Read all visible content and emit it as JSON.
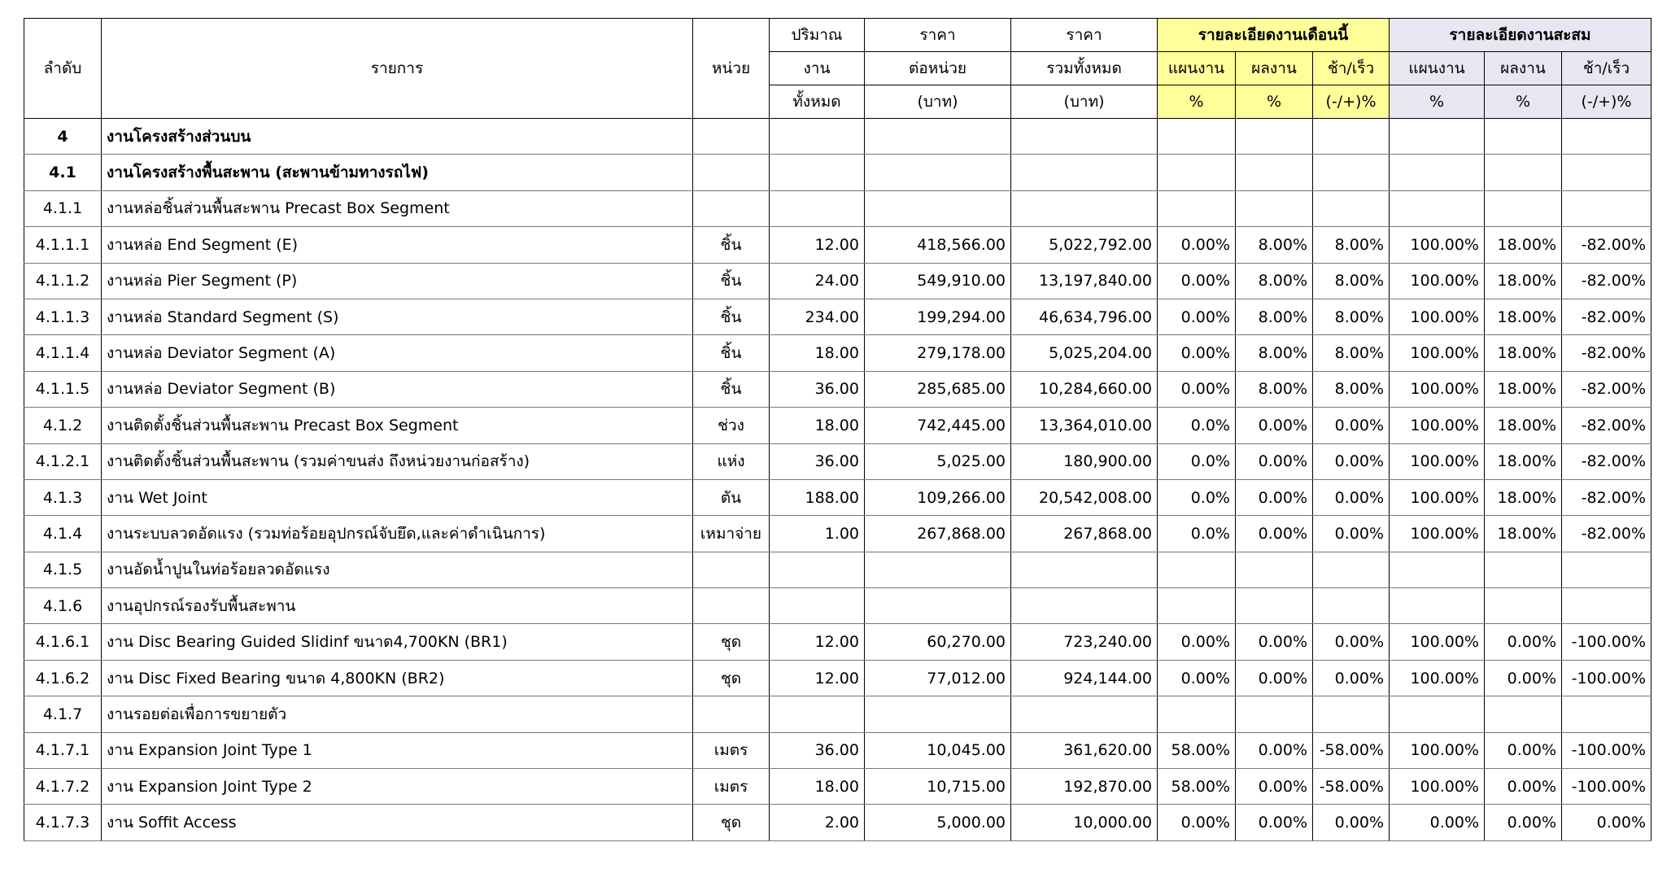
{
  "header": {
    "no": "ลำดับ",
    "item": "รายการ",
    "unit": "หน่วย",
    "qty": [
      "ปริมาณ",
      "งาน",
      "ทั้งหมด"
    ],
    "price": [
      "ราคา",
      "ต่อหน่วย",
      "(บาท)"
    ],
    "total": [
      "ราคา",
      "รวมทั้งหมด",
      "(บาท)"
    ],
    "month": {
      "title": "รายละเอียดงานเดือนนี้",
      "sub": [
        [
          "แผนงาน",
          "%"
        ],
        [
          "ผลงาน",
          "%"
        ],
        [
          "ช้า/เร็ว",
          "(-/+)%"
        ]
      ]
    },
    "cum": {
      "title": "รายละเอียดงานสะสม",
      "sub": [
        [
          "แผนงาน",
          "%"
        ],
        [
          "ผลงาน",
          "%"
        ],
        [
          "ช้า/เร็ว",
          "(-/+)%"
        ]
      ]
    }
  },
  "rows": [
    [
      "4",
      "งานโครงสร้างส่วนบน"
    ],
    [
      "4.1",
      "งานโครงสร้างพื้นสะพาน (สะพานข้ามทางรถไฟ)"
    ],
    [
      "4.1.1",
      "งานหล่อชิ้นส่วนพื้นสะพาน Precast Box Segment"
    ],
    [
      "4.1.1.1",
      "งานหล่อ End Segment (E)",
      "ชิ้น",
      "12.00",
      "418,566.00",
      "5,022,792.00",
      "0.00%",
      "8.00%",
      "8.00%",
      "100.00%",
      "18.00%",
      "-82.00%"
    ],
    [
      "4.1.1.2",
      "งานหล่อ Pier Segment (P)",
      "ชิ้น",
      "24.00",
      "549,910.00",
      "13,197,840.00",
      "0.00%",
      "8.00%",
      "8.00%",
      "100.00%",
      "18.00%",
      "-82.00%"
    ],
    [
      "4.1.1.3",
      "งานหล่อ Standard Segment (S)",
      "ชิ้น",
      "234.00",
      "199,294.00",
      "46,634,796.00",
      "0.00%",
      "8.00%",
      "8.00%",
      "100.00%",
      "18.00%",
      "-82.00%"
    ],
    [
      "4.1.1.4",
      "งานหล่อ Deviator Segment (A)",
      "ชิ้น",
      "18.00",
      "279,178.00",
      "5,025,204.00",
      "0.00%",
      "8.00%",
      "8.00%",
      "100.00%",
      "18.00%",
      "-82.00%"
    ],
    [
      "4.1.1.5",
      "งานหล่อ Deviator Segment (B)",
      "ชิ้น",
      "36.00",
      "285,685.00",
      "10,284,660.00",
      "0.00%",
      "8.00%",
      "8.00%",
      "100.00%",
      "18.00%",
      "-82.00%"
    ],
    [
      "4.1.2",
      "งานติดตั้งชิ้นส่วนพื้นสะพาน Precast Box Segment",
      "ช่วง",
      "18.00",
      "742,445.00",
      "13,364,010.00",
      "0.0%",
      "0.00%",
      "0.00%",
      "100.00%",
      "18.00%",
      "-82.00%"
    ],
    [
      "4.1.2.1",
      "งานติดตั้งชิ้นส่วนพื้นสะพาน (รวมค่าขนส่ง ถึงหน่วยงานก่อสร้าง)",
      "แห่ง",
      "36.00",
      "5,025.00",
      "180,900.00",
      "0.0%",
      "0.00%",
      "0.00%",
      "100.00%",
      "18.00%",
      "-82.00%"
    ],
    [
      "4.1.3",
      "งาน Wet Joint",
      "ตัน",
      "188.00",
      "109,266.00",
      "20,542,008.00",
      "0.0%",
      "0.00%",
      "0.00%",
      "100.00%",
      "18.00%",
      "-82.00%"
    ],
    [
      "4.1.4",
      "งานระบบลวดอัดแรง (รวมท่อร้อยอุปกรณ์จับยึด,และค่าดำเนินการ)",
      "เหมาจ่าย",
      "1.00",
      "267,868.00",
      "267,868.00",
      "0.0%",
      "0.00%",
      "0.00%",
      "100.00%",
      "18.00%",
      "-82.00%"
    ],
    [
      "4.1.5",
      "งานอัดน้ำปูนในท่อร้อยลวดอัดแรง"
    ],
    [
      "4.1.6",
      "งานอุปกรณ์รองรับพื้นสะพาน"
    ],
    [
      "4.1.6.1",
      "งาน Disc Bearing Guided Slidinf ขนาด4,700KN (BR1)",
      "ชุด",
      "12.00",
      "60,270.00",
      "723,240.00",
      "0.00%",
      "0.00%",
      "0.00%",
      "100.00%",
      "0.00%",
      "-100.00%"
    ],
    [
      "4.1.6.2",
      "งาน Disc Fixed Bearing ขนาด 4,800KN (BR2)",
      "ชุด",
      "12.00",
      "77,012.00",
      "924,144.00",
      "0.00%",
      "0.00%",
      "0.00%",
      "100.00%",
      "0.00%",
      "-100.00%"
    ],
    [
      "4.1.7",
      "งานรอยต่อเพื่อการขยายตัว"
    ],
    [
      "4.1.7.1",
      "งาน Expansion Joint Type 1",
      "เมตร",
      "36.00",
      "10,045.00",
      "361,620.00",
      "58.00%",
      "0.00%",
      "-58.00%",
      "100.00%",
      "0.00%",
      "-100.00%"
    ],
    [
      "4.1.7.2",
      "งาน Expansion Joint Type 2",
      "เมตร",
      "18.00",
      "10,715.00",
      "192,870.00",
      "58.00%",
      "0.00%",
      "-58.00%",
      "100.00%",
      "0.00%",
      "-100.00%"
    ],
    [
      "4.1.7.3",
      "งาน Soffit Access",
      "ชุด",
      "2.00",
      "5,000.00",
      "10,000.00",
      "0.00%",
      "0.00%",
      "0.00%",
      "0.00%",
      "0.00%",
      "0.00%"
    ]
  ]
}
